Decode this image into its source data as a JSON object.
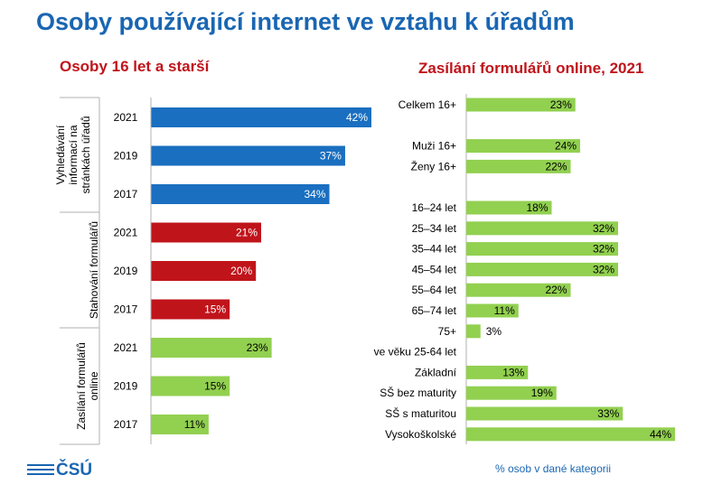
{
  "title": "Osoby používající internet ve vztahu k úřadům",
  "left_subtitle": "Osoby 16 let a starší",
  "right_subtitle": "Zasílání formulářů online, 2021",
  "footnote": "% osob v dané kategorii",
  "logo_text": "ČSÚ",
  "chart_data": [
    {
      "type": "bar",
      "orientation": "horizontal",
      "title": "Osoby 16 let a starší",
      "xlim": [
        0,
        50
      ],
      "groups": [
        {
          "label": "Vyhledávání informací na stránkách úřadů",
          "label_lines": [
            "Vyhledávání",
            "informací na",
            "stránkách úřadů"
          ],
          "color": "#1a6fc0",
          "label_color": "#ffffff",
          "bars": [
            {
              "year": "2021",
              "value": 42,
              "label": "42%"
            },
            {
              "year": "2019",
              "value": 37,
              "label": "37%"
            },
            {
              "year": "2017",
              "value": 34,
              "label": "34%"
            }
          ]
        },
        {
          "label": "Stahování formulářů",
          "label_lines": [
            "Stahování formulářů"
          ],
          "color": "#c0141b",
          "label_color": "#ffffff",
          "bars": [
            {
              "year": "2021",
              "value": 21,
              "label": "21%"
            },
            {
              "year": "2019",
              "value": 20,
              "label": "20%"
            },
            {
              "year": "2017",
              "value": 15,
              "label": "15%"
            }
          ]
        },
        {
          "label": "Zasílání formulářů online",
          "label_lines": [
            "Zasílání formulářů",
            "online"
          ],
          "color": "#92d050",
          "label_color": "#000000",
          "bars": [
            {
              "year": "2021",
              "value": 23,
              "label": "23%"
            },
            {
              "year": "2019",
              "value": 15,
              "label": "15%"
            },
            {
              "year": "2017",
              "value": 11,
              "label": "11%"
            }
          ]
        }
      ]
    },
    {
      "type": "bar",
      "orientation": "horizontal",
      "title": "Zasílání formulářů online, 2021",
      "xlim": [
        0,
        44
      ],
      "color": "#92d050",
      "categories": [
        "Celkem 16+",
        "",
        "Muži 16+",
        "Ženy 16+",
        "",
        "16–24 let",
        "25–34 let",
        "35–44 let",
        "45–54 let",
        "55–64 let",
        "65–74 let",
        "75+",
        "ve věku 25-64 let",
        "Základní",
        "SŠ bez maturity",
        "SŠ s maturitou",
        "Vysokoškolské"
      ],
      "values": [
        23,
        null,
        24,
        22,
        null,
        18,
        32,
        32,
        32,
        22,
        11,
        3,
        null,
        13,
        19,
        33,
        44
      ],
      "labels": [
        "23%",
        "",
        "24%",
        "22%",
        "",
        "18%",
        "32%",
        "32%",
        "32%",
        "22%",
        "11%",
        "3%",
        "",
        "13%",
        "19%",
        "33%",
        "44%"
      ]
    }
  ]
}
